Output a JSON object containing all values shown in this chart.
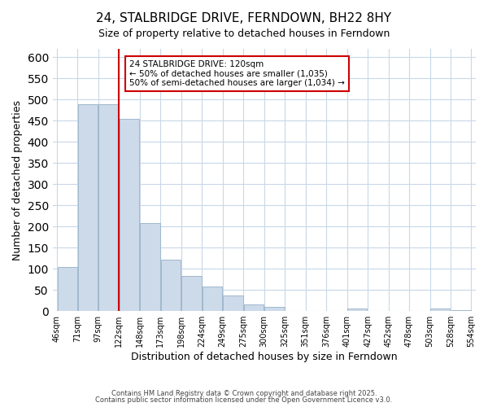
{
  "title": "24, STALBRIDGE DRIVE, FERNDOWN, BH22 8HY",
  "subtitle": "Size of property relative to detached houses in Ferndown",
  "xlabel": "Distribution of detached houses by size in Ferndown",
  "ylabel": "Number of detached properties",
  "bar_values": [
    105,
    490,
    490,
    455,
    208,
    122,
    83,
    58,
    37,
    15,
    10,
    0,
    0,
    0,
    5,
    0,
    0,
    0,
    5,
    3
  ],
  "bin_labels": [
    "46sqm",
    "71sqm",
    "97sqm",
    "122sqm",
    "148sqm",
    "173sqm",
    "198sqm",
    "224sqm",
    "249sqm",
    "275sqm",
    "300sqm",
    "325sqm",
    "351sqm",
    "376sqm",
    "401sqm",
    "427sqm",
    "452sqm",
    "478sqm",
    "503sqm",
    "528sqm",
    "554sqm"
  ],
  "bar_color": "#ccdaea",
  "bar_edge_color": "#a0b8cc",
  "grid_color": "#c8d8e8",
  "vline_color": "#cc0000",
  "annotation_text": "24 STALBRIDGE DRIVE: 120sqm\n← 50% of detached houses are smaller (1,035)\n50% of semi-detached houses are larger (1,034) →",
  "annotation_box_color": "#ffffff",
  "annotation_box_edge": "#cc0000",
  "ylim": [
    0,
    620
  ],
  "yticks": [
    0,
    50,
    100,
    150,
    200,
    250,
    300,
    350,
    400,
    450,
    500,
    550,
    600
  ],
  "footer1": "Contains HM Land Registry data © Crown copyright and database right 2025.",
  "footer2": "Contains public sector information licensed under the Open Government Licence v3.0.",
  "num_bins": 20
}
